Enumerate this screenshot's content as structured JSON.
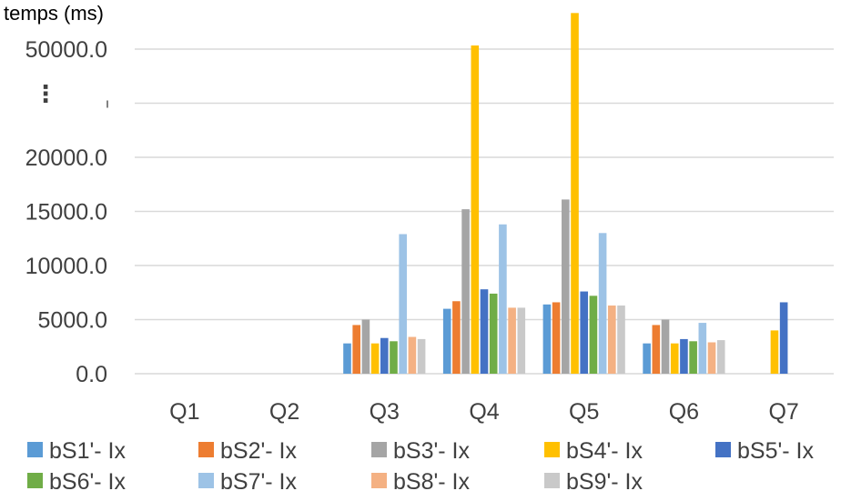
{
  "chart_data": {
    "type": "bar",
    "ylabel": "temps (ms)",
    "xlabel": "",
    "categories": [
      "Q1",
      "Q2",
      "Q3",
      "Q4",
      "Q5",
      "Q6",
      "Q7"
    ],
    "y_ticks": [
      "0.0",
      "5000.0",
      "10000.0",
      "15000.0",
      "20000.0",
      "50000.0"
    ],
    "axis_break_marker": "⋮",
    "grid": true,
    "legend_position": "bottom",
    "series": [
      {
        "name": "bS1'- Ix",
        "color": "#5b9bd5",
        "values": [
          null,
          null,
          2800,
          6000,
          6400,
          2800,
          null
        ]
      },
      {
        "name": "bS2'- Ix",
        "color": "#ed7d31",
        "values": [
          null,
          null,
          4500,
          6700,
          6600,
          4500,
          null
        ]
      },
      {
        "name": "bS3'- Ix",
        "color": "#a5a5a5",
        "values": [
          null,
          null,
          5000,
          15200,
          16100,
          5000,
          null
        ]
      },
      {
        "name": "bS4'- Ix",
        "color": "#ffc000",
        "values": [
          null,
          null,
          2800,
          51000,
          60000,
          2800,
          4000
        ]
      },
      {
        "name": "bS5'- Ix",
        "color": "#4472c4",
        "values": [
          null,
          null,
          3300,
          7800,
          7600,
          3200,
          6600
        ]
      },
      {
        "name": "bS6'- Ix",
        "color": "#70ad47",
        "values": [
          null,
          null,
          3000,
          7400,
          7200,
          3000,
          null
        ]
      },
      {
        "name": "bS7'- Ix",
        "color": "#9dc3e6",
        "values": [
          null,
          null,
          12900,
          13800,
          13000,
          4700,
          null
        ]
      },
      {
        "name": "bS8'- Ix",
        "color": "#f4b183",
        "values": [
          null,
          null,
          3400,
          6100,
          6300,
          2900,
          null
        ]
      },
      {
        "name": "bS9'- Ix",
        "color": "#c9c9c9",
        "values": [
          null,
          null,
          3200,
          6100,
          6300,
          3100,
          null
        ]
      }
    ]
  }
}
